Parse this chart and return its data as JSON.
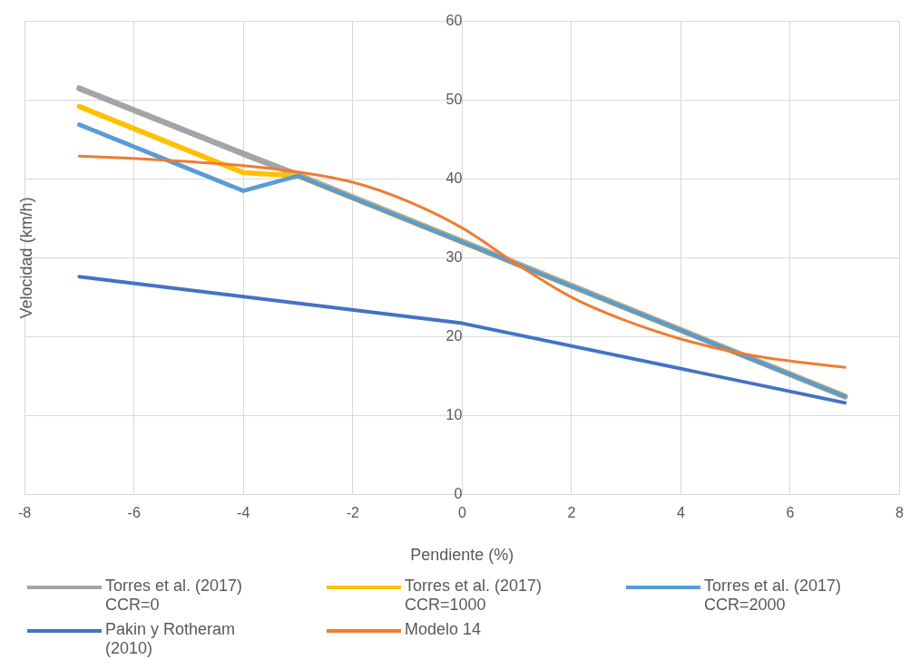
{
  "chart_data": {
    "type": "line",
    "xlabel": "Pendiente (%)",
    "ylabel": "Velocidad (km/h)",
    "xlim": [
      -8,
      8
    ],
    "xticks": [
      -8,
      -6,
      -4,
      -2,
      0,
      2,
      4,
      6,
      8
    ],
    "ylim": [
      0,
      60
    ],
    "yticks": [
      0,
      10,
      20,
      30,
      40,
      50,
      60
    ],
    "grid": true,
    "legend": "bottom",
    "marker": "none",
    "line_style": "solid",
    "series": [
      {
        "name": "Torres et al. (2017) CCR=0",
        "color": "#a5a5a5",
        "x": [
          -7,
          -4,
          -3,
          7
        ],
        "values": [
          51.5,
          43.2,
          40.5,
          12.4
        ]
      },
      {
        "name": "Torres et al. (2017) CCR=1000",
        "color": "#ffc000",
        "x": [
          -7,
          -4,
          -3,
          7
        ],
        "values": [
          49.2,
          40.8,
          40.4,
          12.4
        ]
      },
      {
        "name": "Torres et al. (2017) CCR=2000",
        "color": "#5b9bd5",
        "x": [
          -7,
          -4,
          -3,
          7
        ],
        "values": [
          46.9,
          38.5,
          40.4,
          12.4
        ]
      },
      {
        "name": "Pakin y Rotheram (2010)",
        "color": "#4472c4",
        "x": [
          -7,
          0,
          7
        ],
        "values": [
          27.6,
          21.7,
          11.6
        ]
      },
      {
        "name": "Modelo 14",
        "color": "#ed7d31",
        "x": [
          -7,
          -6,
          -5,
          -4,
          -3,
          -2,
          -1,
          0,
          1,
          2,
          3,
          4,
          5,
          6,
          7
        ],
        "values": [
          42.9,
          42.6,
          42.2,
          41.7,
          40.9,
          39.6,
          37.2,
          33.8,
          29.2,
          25.0,
          22.0,
          19.7,
          18.0,
          16.9,
          16.1
        ]
      }
    ]
  }
}
